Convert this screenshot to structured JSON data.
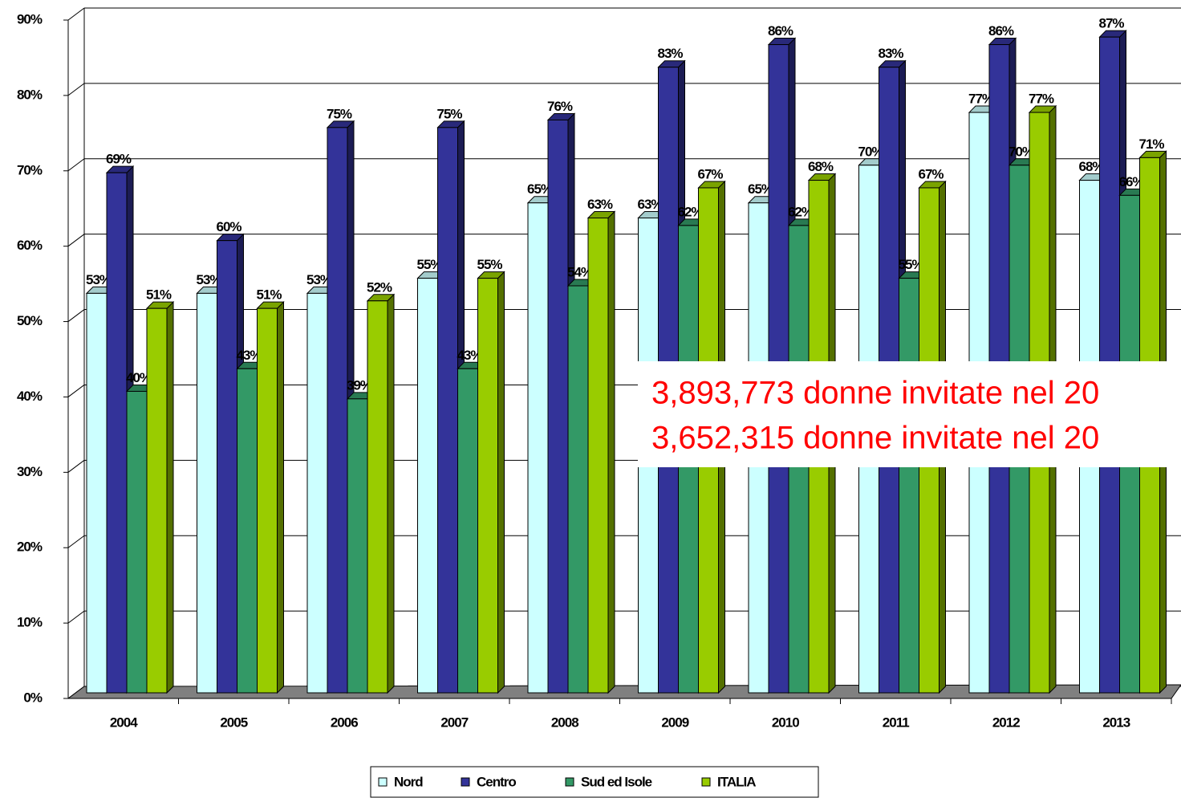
{
  "chart_data": {
    "type": "bar3d",
    "categories": [
      "2004",
      "2005",
      "2006",
      "2007",
      "2008",
      "2009",
      "2010",
      "2011",
      "2012",
      "2013"
    ],
    "series": [
      {
        "name": "Nord",
        "color": "#ccffff",
        "values": [
          53,
          53,
          53,
          55,
          65,
          63,
          65,
          70,
          77,
          68
        ],
        "value_labels": [
          "53%",
          "53%",
          "53%",
          "55%",
          "65%",
          "63%",
          "65%",
          "70%",
          "77%",
          "68%"
        ]
      },
      {
        "name": "Centro",
        "color": "#333399",
        "values": [
          69,
          60,
          75,
          75,
          76,
          83,
          86,
          83,
          86,
          87
        ],
        "value_labels": [
          "69%",
          "60%",
          "75%",
          "75%",
          "76%",
          "83%",
          "86%",
          "83%",
          "86%",
          "87%"
        ]
      },
      {
        "name": "Sud ed Isole",
        "color": "#339966",
        "values": [
          40,
          43,
          39,
          43,
          54,
          62,
          62,
          55,
          70,
          66
        ],
        "value_labels": [
          "40%",
          "43%",
          "39%",
          "43%",
          "54%",
          "62%",
          "62%",
          "55%",
          "70%",
          "66%"
        ]
      },
      {
        "name": "ITALIA",
        "color": "#99cc00",
        "values": [
          51,
          51,
          52,
          55,
          63,
          67,
          68,
          67,
          77,
          71
        ],
        "value_labels": [
          "51%",
          "51%",
          "52%",
          "55%",
          "63%",
          "67%",
          "68%",
          "67%",
          "77%",
          "71%"
        ]
      }
    ],
    "ylim": [
      0,
      90
    ],
    "yticks": [
      {
        "value": 0,
        "label": "0%"
      },
      {
        "value": 10,
        "label": "10%"
      },
      {
        "value": 20,
        "label": "20%"
      },
      {
        "value": 30,
        "label": "30%"
      },
      {
        "value": 40,
        "label": "40%"
      },
      {
        "value": 50,
        "label": "50%"
      },
      {
        "value": 60,
        "label": "60%"
      },
      {
        "value": 70,
        "label": "70%"
      },
      {
        "value": 80,
        "label": "80%"
      },
      {
        "value": 90,
        "label": "90%"
      }
    ],
    "grid": true,
    "legend": "bottom",
    "annotations": [
      "3,893,773 donne invitate nel 20",
      "3,652,315 donne invitate nel 20"
    ]
  }
}
